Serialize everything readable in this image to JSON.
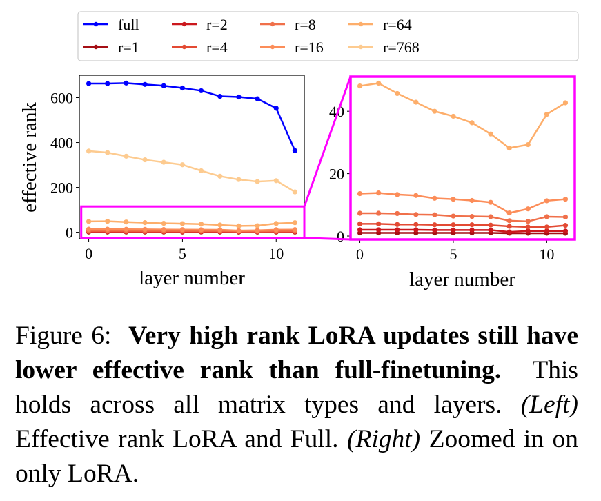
{
  "chart_data": [
    {
      "type": "line",
      "panel": "left",
      "xlabel": "layer number",
      "ylabel": "effective rank",
      "x": [
        0,
        1,
        2,
        3,
        4,
        5,
        6,
        7,
        8,
        9,
        10,
        11
      ],
      "xticks": [
        0,
        5,
        10
      ],
      "yticks": [
        0,
        200,
        400,
        600
      ],
      "xlim": [
        -0.5,
        11.5
      ],
      "ylim": [
        -29,
        700
      ],
      "grid": false,
      "legend_placement": "top, above both panels",
      "zoom_box": {
        "x_range": [
          -0.4,
          11.5
        ],
        "y_range": [
          -25,
          115
        ],
        "color": "#ff00ff"
      },
      "series": [
        {
          "name": "full",
          "color": "#0000ff",
          "values": [
            663,
            663,
            665,
            659,
            653,
            643,
            631,
            606,
            603,
            595,
            553,
            364
          ]
        },
        {
          "name": "r=1",
          "color": "#a50f15",
          "values": [
            1.0,
            1.0,
            1.0,
            1.0,
            1.0,
            1.0,
            1.0,
            1.0,
            0.9,
            0.9,
            0.9,
            0.9
          ]
        },
        {
          "name": "r=2",
          "color": "#cb181d",
          "values": [
            2.0,
            2.0,
            2.0,
            2.0,
            1.9,
            1.9,
            1.9,
            1.9,
            1.3,
            1.6,
            1.6,
            1.6
          ]
        },
        {
          "name": "r=4",
          "color": "#e34a33",
          "values": [
            3.9,
            3.9,
            3.7,
            3.7,
            3.6,
            3.6,
            3.6,
            3.5,
            3.1,
            2.9,
            2.9,
            3.4
          ]
        },
        {
          "name": "r=8",
          "color": "#f0704a",
          "values": [
            7.3,
            7.3,
            7.2,
            6.9,
            6.8,
            6.4,
            6.3,
            6.2,
            4.9,
            4.7,
            6.2,
            6.1
          ]
        },
        {
          "name": "r=16",
          "color": "#fc8d59",
          "values": [
            13.6,
            13.8,
            13.3,
            13.0,
            12.1,
            11.8,
            11.4,
            10.8,
            7.4,
            8.7,
            11.3,
            11.8
          ]
        },
        {
          "name": "r=64",
          "color": "#fdae6b",
          "values": [
            48.1,
            49.0,
            45.7,
            42.9,
            40.0,
            38.4,
            36.3,
            32.7,
            28.2,
            29.3,
            39.0,
            42.7
          ]
        },
        {
          "name": "r=768",
          "color": "#fdcb90",
          "values": [
            362,
            355,
            339,
            323,
            312,
            301,
            274,
            250,
            235,
            226,
            230,
            180
          ]
        }
      ]
    },
    {
      "type": "line",
      "panel": "right",
      "xlabel": "layer number",
      "ylabel": "",
      "x": [
        0,
        1,
        2,
        3,
        4,
        5,
        6,
        7,
        8,
        9,
        10,
        11
      ],
      "xticks": [
        0,
        5,
        10
      ],
      "yticks": [
        0,
        20,
        40
      ],
      "xlim": [
        -0.5,
        11.5
      ],
      "ylim": [
        -1.1,
        51.1
      ],
      "grid": false,
      "frame_color": "#ff00ff",
      "series_names": [
        "r=1",
        "r=2",
        "r=4",
        "r=8",
        "r=16",
        "r=64"
      ]
    }
  ],
  "legend": {
    "entries": [
      "full",
      "r=2",
      "r=8",
      "r=64",
      "r=1",
      "r=4",
      "r=16",
      "r=768"
    ]
  },
  "caption": {
    "label": "Figure 6:",
    "bold": "Very high rank LoRA updates still have lower effective rank than full-finetuning.",
    "text1": "This holds across all matrix types and layers.",
    "left_tag": "(Left)",
    "text2": "Effective rank LoRA and Full.",
    "right_tag": "(Right)",
    "text3": "Zoomed in on only LoRA."
  }
}
